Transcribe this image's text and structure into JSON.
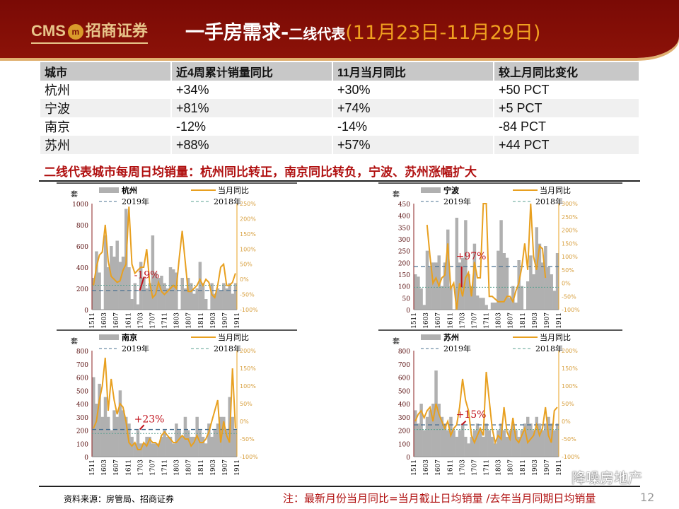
{
  "header": {
    "logo": "CMS",
    "logo_mark": "m",
    "logo_cn": "招商证券",
    "title_main": "一手房需求-",
    "title_sub": "二线代表",
    "title_date": "(11月23日-11月29日)"
  },
  "table": {
    "headers": [
      "城市",
      "近4周累计销量同比",
      "11月当月同比",
      "较上月同比变化"
    ],
    "rows": [
      [
        "杭州",
        "+34%",
        "+30%",
        "+50 PCT"
      ],
      [
        "宁波",
        "+81%",
        "+74%",
        "+5 PCT"
      ],
      [
        "南京",
        "-12%",
        "-14%",
        "-84 PCT"
      ],
      [
        "苏州",
        "+88%",
        "+57%",
        "+44 PCT"
      ]
    ]
  },
  "subtitle": "二线代表城市每周日均销量：杭州同比转正，南京同比转负，宁波、苏州涨幅扩大",
  "colors": {
    "bar": "#b0b0b0",
    "line": "#e8a020",
    "ref2019": "#4a7090",
    "ref2018": "#5aa090",
    "annot": "#c0101a"
  },
  "chart_data": [
    {
      "type": "bar+line",
      "city": "杭州",
      "ylabel": "套",
      "legend": [
        "杭州",
        "当月同比",
        "2019年",
        "2018年"
      ],
      "ylim": [
        0,
        1000
      ],
      "ystep": 200,
      "y2lim": [
        -100,
        250
      ],
      "y2step": 50,
      "xticks": [
        "1511",
        "1603",
        "1607",
        "1611",
        "1703",
        "1707",
        "1711",
        "1803",
        "1807",
        "1811",
        "1903",
        "1907",
        "1911"
      ],
      "ref_2019": 180,
      "ref_2018": 230,
      "annotation": "-19%",
      "bars": [
        300,
        550,
        350,
        0,
        700,
        400,
        600,
        500,
        650,
        450,
        500,
        950,
        400,
        100,
        250,
        50,
        450,
        300,
        200,
        250,
        700,
        350,
        300,
        320,
        250,
        200,
        400,
        380,
        350,
        0,
        300,
        200,
        300,
        250,
        150,
        200,
        450,
        250,
        100,
        0,
        250,
        150,
        200,
        180,
        250,
        200,
        250,
        150,
        250
      ],
      "yoy": [
        -20,
        40,
        80,
        90,
        180,
        60,
        10,
        0,
        -10,
        -5,
        30,
        50,
        240,
        50,
        20,
        30,
        40,
        40,
        100,
        -10,
        -60,
        -50,
        -10,
        -40,
        -50,
        -40,
        -30,
        -20,
        -30,
        70,
        160,
        60,
        -40,
        -40,
        -30,
        -20,
        0,
        -20,
        0,
        -10,
        -50,
        -60,
        -20,
        40,
        50,
        -20,
        -20,
        -10,
        20
      ]
    },
    {
      "type": "bar+line",
      "city": "宁波",
      "ylabel": "套",
      "legend": [
        "宁波",
        "当月同比",
        "2019年",
        "2018年"
      ],
      "ylim": [
        0,
        450
      ],
      "ystep": 50,
      "y2lim": [
        -100,
        300
      ],
      "y2step": 50,
      "xticks": [
        "1511",
        "1603",
        "1607",
        "1611",
        "1703",
        "1707",
        "1711",
        "1803",
        "1807",
        "1811",
        "1903",
        "1907",
        "1911"
      ],
      "ref_2019": 183,
      "ref_2018": 95,
      "annotation": "+97%",
      "bars": [
        150,
        140,
        90,
        20,
        250,
        180,
        200,
        200,
        230,
        100,
        200,
        340,
        100,
        0,
        390,
        200,
        220,
        380,
        150,
        100,
        280,
        60,
        50,
        50,
        20,
        0,
        30,
        30,
        250,
        380,
        240,
        220,
        50,
        100,
        30,
        210,
        100,
        0,
        120,
        230,
        150,
        350,
        280,
        200,
        270,
        180,
        150,
        80,
        240
      ],
      "yoy": [
        null,
        null,
        null,
        null,
        220,
        100,
        0,
        20,
        -10,
        20,
        30,
        150,
        -20,
        0,
        -100,
        0,
        -50,
        20,
        40,
        -50,
        80,
        20,
        20,
        400,
        400,
        -50,
        -50,
        -60,
        -70,
        -70,
        -70,
        -50,
        -50,
        -70,
        -30,
        0,
        60,
        150,
        50,
        400,
        100,
        50,
        140,
        130,
        20,
        null,
        null,
        null,
        null
      ]
    },
    {
      "type": "bar+line",
      "city": "南京",
      "ylabel": "套",
      "legend": [
        "南京",
        "当月同比",
        "2019年",
        "2018年"
      ],
      "ylim": [
        0,
        800
      ],
      "ystep": 100,
      "y2lim": [
        -100,
        200
      ],
      "y2step": 50,
      "xticks": [
        "1511",
        "1603",
        "1607",
        "1611",
        "1703",
        "1707",
        "1711",
        "1803",
        "1807",
        "1811",
        "1903",
        "1907",
        "1911"
      ],
      "ref_2019": 205,
      "ref_2018": 175,
      "annotation": "+23%",
      "bars": [
        600,
        400,
        550,
        300,
        450,
        300,
        200,
        350,
        300,
        500,
        350,
        300,
        250,
        150,
        100,
        200,
        100,
        100,
        150,
        150,
        100,
        100,
        100,
        150,
        200,
        150,
        150,
        100,
        250,
        200,
        150,
        300,
        200,
        150,
        150,
        300,
        200,
        150,
        100,
        250,
        150,
        200,
        250,
        300,
        300,
        200,
        450,
        300,
        200
      ],
      "yoy": [
        -20,
        0,
        60,
        100,
        180,
        30,
        120,
        60,
        20,
        50,
        40,
        0,
        -60,
        -70,
        -60,
        -80,
        -80,
        -60,
        -70,
        -50,
        -60,
        -60,
        -70,
        -40,
        -30,
        -40,
        -50,
        -60,
        -60,
        -50,
        -40,
        -50,
        -50,
        -70,
        -60,
        -40,
        -60,
        -60,
        -50,
        -30,
        0,
        30,
        60,
        -60,
        0,
        -40,
        -60,
        150,
        -20
      ]
    },
    {
      "type": "bar+line",
      "city": "苏州",
      "ylabel": "套",
      "legend": [
        "苏州",
        "当月同比",
        "2019年",
        "2018年"
      ],
      "ylim": [
        0,
        800
      ],
      "ystep": 100,
      "y2lim": [
        -100,
        200
      ],
      "y2step": 50,
      "xticks": [
        "1511",
        "1603",
        "1607",
        "1611",
        "1703",
        "1707",
        "1711",
        "1803",
        "1807",
        "1811",
        "1903",
        "1907",
        "1911"
      ],
      "ref_2019": 240,
      "ref_2018": 205,
      "annotation": "+15%",
      "bars": [
        350,
        250,
        400,
        200,
        300,
        350,
        400,
        650,
        400,
        300,
        250,
        200,
        300,
        200,
        150,
        200,
        250,
        150,
        100,
        150,
        200,
        250,
        200,
        150,
        250,
        200,
        150,
        100,
        200,
        250,
        200,
        150,
        200,
        250,
        200,
        150,
        200,
        250,
        300,
        250,
        200,
        300,
        250,
        200,
        250,
        300,
        250,
        200,
        250
      ],
      "yoy": [
        0,
        20,
        30,
        10,
        30,
        40,
        0,
        50,
        20,
        0,
        -20,
        0,
        -40,
        -20,
        -10,
        40,
        120,
        60,
        30,
        -40,
        -60,
        -40,
        -20,
        -40,
        140,
        60,
        -20,
        -60,
        -40,
        -50,
        40,
        -30,
        -50,
        10,
        -50,
        -60,
        -40,
        -20,
        -60,
        -50,
        -40,
        -10,
        -40,
        -20,
        40,
        -40,
        -60,
        30,
        40
      ]
    }
  ],
  "footer": {
    "source": "资料来源：房管局、招商证券",
    "note": "注：最新月份当月同比=当月截止日均销量 /去年当月同期日均销量",
    "page": "12",
    "watermark": "降噪房地产"
  }
}
